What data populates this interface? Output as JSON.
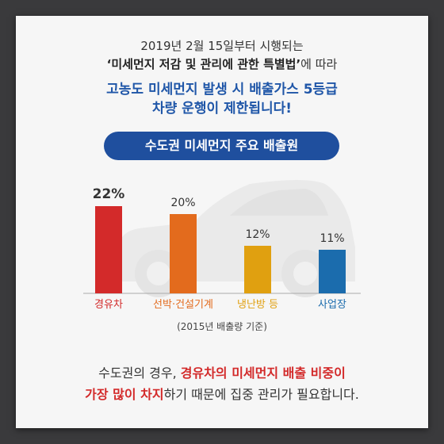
{
  "intro": {
    "line1": "2019년 2월 15일부터 시행되는",
    "line2_bold": "‘미세먼지 저감 및 관리에 관한 특별법’",
    "line2_rest": "에 따라",
    "line3": "고농도 미세먼지 발생 시 배출가스 5등급",
    "line4": "차량 운행이 제한됩니다!"
  },
  "chart_title": "수도권 미세먼지 주요 배출원",
  "chart_data": {
    "type": "bar",
    "categories": [
      "경유차",
      "선박·건설기계",
      "냉난방 등",
      "사업장"
    ],
    "values": [
      22,
      20,
      12,
      11
    ],
    "value_labels": [
      "22%",
      "20%",
      "12%",
      "11%"
    ],
    "colors": [
      "#d32a2a",
      "#e36b1d",
      "#e0a010",
      "#1b6cad"
    ],
    "note": "(2015년 배출량 기준)"
  },
  "bottom": {
    "l1_plain": "수도권의 경우, ",
    "l1_red": "경유차의 미세먼지 배출 비중이",
    "l2_red": "가장 많이 차지",
    "l2_plain": "하기 때문에 집중 관리가 필요합니다."
  }
}
